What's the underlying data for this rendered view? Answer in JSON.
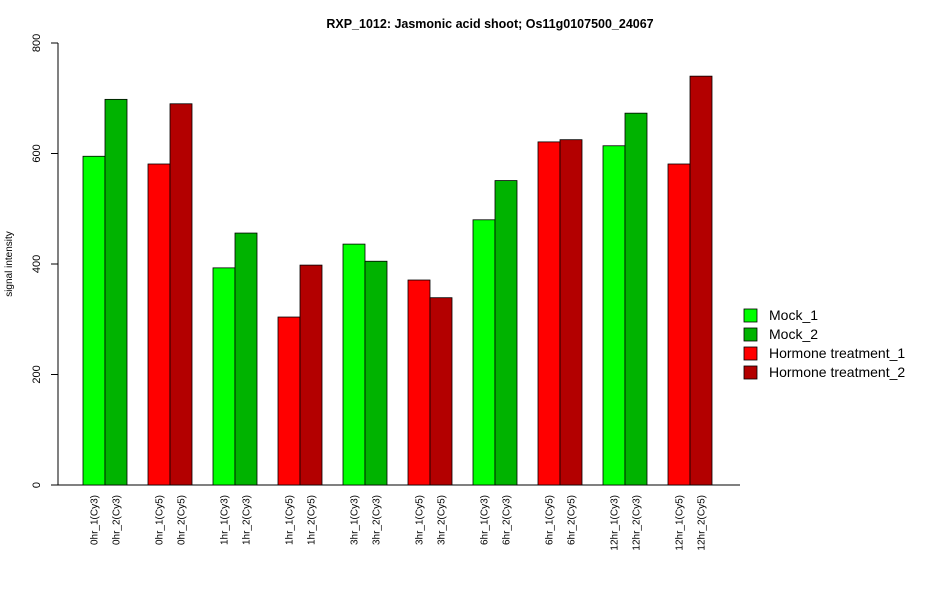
{
  "chart_data": {
    "type": "bar",
    "title": "RXP_1012: Jasmonic acid shoot; Os11g0107500_24067",
    "xlabel": "",
    "ylabel": "signal intensity",
    "ylim": [
      0,
      800
    ],
    "yticks": [
      0,
      200,
      400,
      600,
      800
    ],
    "grid": false,
    "legend_position": "right",
    "legend": [
      {
        "label": "Mock_1",
        "color": "#00ff00"
      },
      {
        "label": "Mock_2",
        "color": "#00b300"
      },
      {
        "label": "Hormone treatment_1",
        "color": "#ff0000"
      },
      {
        "label": "Hormone treatment_2",
        "color": "#b30000"
      }
    ],
    "groups": [
      {
        "bars": [
          {
            "label": "0hr_1(Cy3)",
            "value": 595,
            "color": "#00ff00"
          },
          {
            "label": "0hr_2(Cy3)",
            "value": 698,
            "color": "#00b300"
          }
        ]
      },
      {
        "bars": [
          {
            "label": "0hr_1(Cy5)",
            "value": 581,
            "color": "#ff0000"
          },
          {
            "label": "0hr_2(Cy5)",
            "value": 690,
            "color": "#b30000"
          }
        ]
      },
      {
        "bars": [
          {
            "label": "1hr_1(Cy3)",
            "value": 393,
            "color": "#00ff00"
          },
          {
            "label": "1hr_2(Cy3)",
            "value": 456,
            "color": "#00b300"
          }
        ]
      },
      {
        "bars": [
          {
            "label": "1hr_1(Cy5)",
            "value": 304,
            "color": "#ff0000"
          },
          {
            "label": "1hr_2(Cy5)",
            "value": 398,
            "color": "#b30000"
          }
        ]
      },
      {
        "bars": [
          {
            "label": "3hr_1(Cy3)",
            "value": 436,
            "color": "#00ff00"
          },
          {
            "label": "3hr_2(Cy3)",
            "value": 405,
            "color": "#00b300"
          }
        ]
      },
      {
        "bars": [
          {
            "label": "3hr_1(Cy5)",
            "value": 371,
            "color": "#ff0000"
          },
          {
            "label": "3hr_2(Cy5)",
            "value": 339,
            "color": "#b30000"
          }
        ]
      },
      {
        "bars": [
          {
            "label": "6hr_1(Cy3)",
            "value": 480,
            "color": "#00ff00"
          },
          {
            "label": "6hr_2(Cy3)",
            "value": 551,
            "color": "#00b300"
          }
        ]
      },
      {
        "bars": [
          {
            "label": "6hr_1(Cy5)",
            "value": 621,
            "color": "#ff0000"
          },
          {
            "label": "6hr_2(Cy5)",
            "value": 625,
            "color": "#b30000"
          }
        ]
      },
      {
        "bars": [
          {
            "label": "12hr_1(Cy3)",
            "value": 614,
            "color": "#00ff00"
          },
          {
            "label": "12hr_2(Cy3)",
            "value": 673,
            "color": "#00b300"
          }
        ]
      },
      {
        "bars": [
          {
            "label": "12hr_1(Cy5)",
            "value": 581,
            "color": "#ff0000"
          },
          {
            "label": "12hr_2(Cy5)",
            "value": 740,
            "color": "#b30000"
          }
        ]
      }
    ]
  }
}
